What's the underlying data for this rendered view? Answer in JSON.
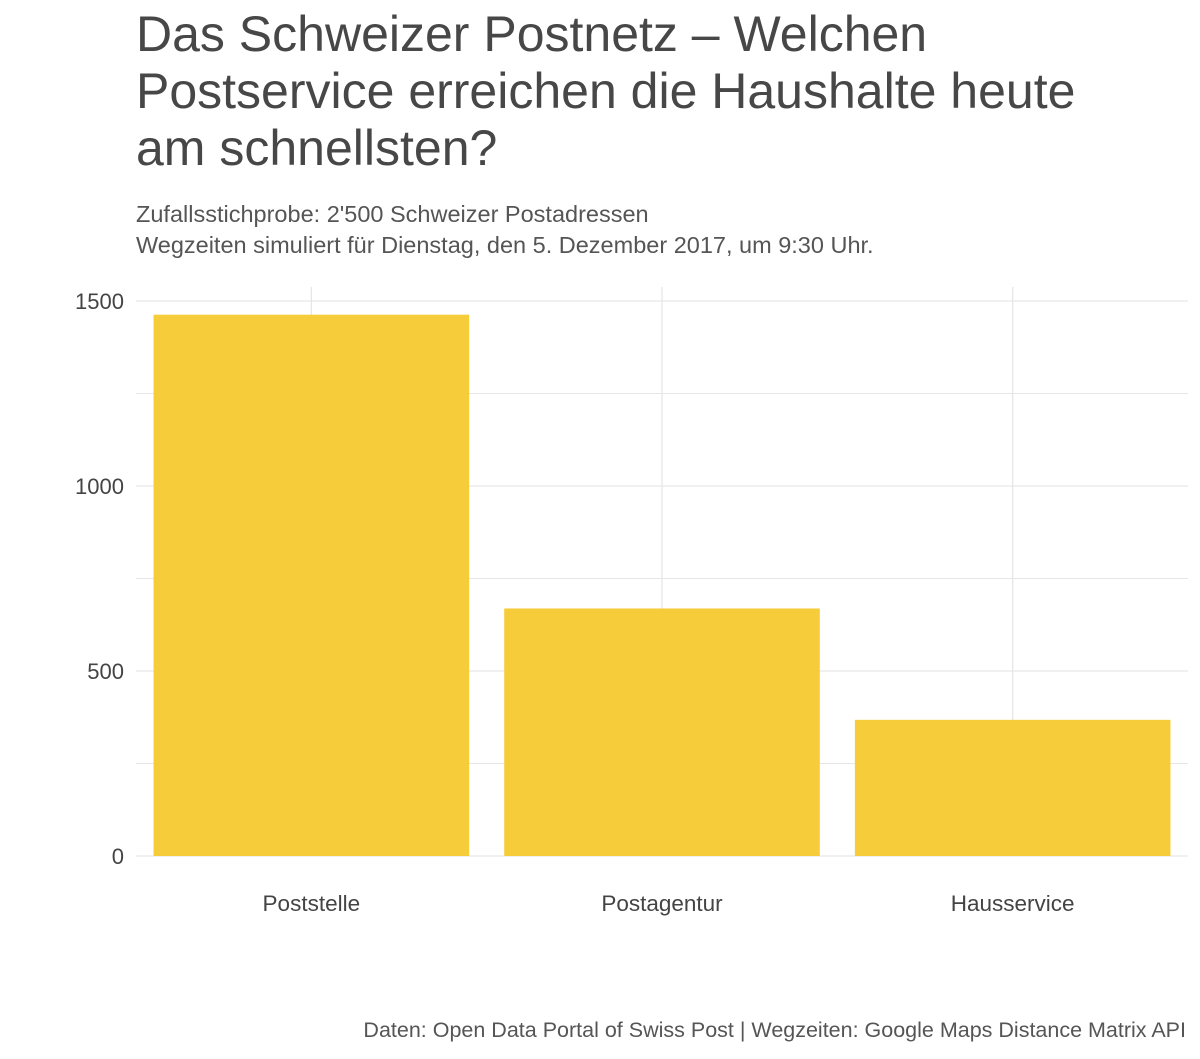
{
  "chart_data": {
    "type": "bar",
    "title": "Das Schweizer Postnetz – Welchen Postservice erreichen die Haushalte heute am schnellsten?",
    "subtitle_lines": [
      "Zufallsstichprobe: 2'500 Schweizer Postadressen",
      "Wegzeiten simuliert für Dienstag, den 5. Dezember 2017, um 9:30 Uhr."
    ],
    "caption": "Daten: Open Data Portal of Swiss Post | Wegzeiten: Google Maps Distance Matrix API",
    "xlabel": "",
    "ylabel": "",
    "categories": [
      "Poststelle",
      "Postagentur",
      "Hausservice"
    ],
    "values": [
      1463,
      669,
      368
    ],
    "ylim": [
      0,
      1500
    ],
    "yticks": [
      0,
      500,
      1000,
      1500
    ],
    "grid": true,
    "bar_color": "#F7CC3A",
    "grid_color": "#e6e6e6"
  }
}
